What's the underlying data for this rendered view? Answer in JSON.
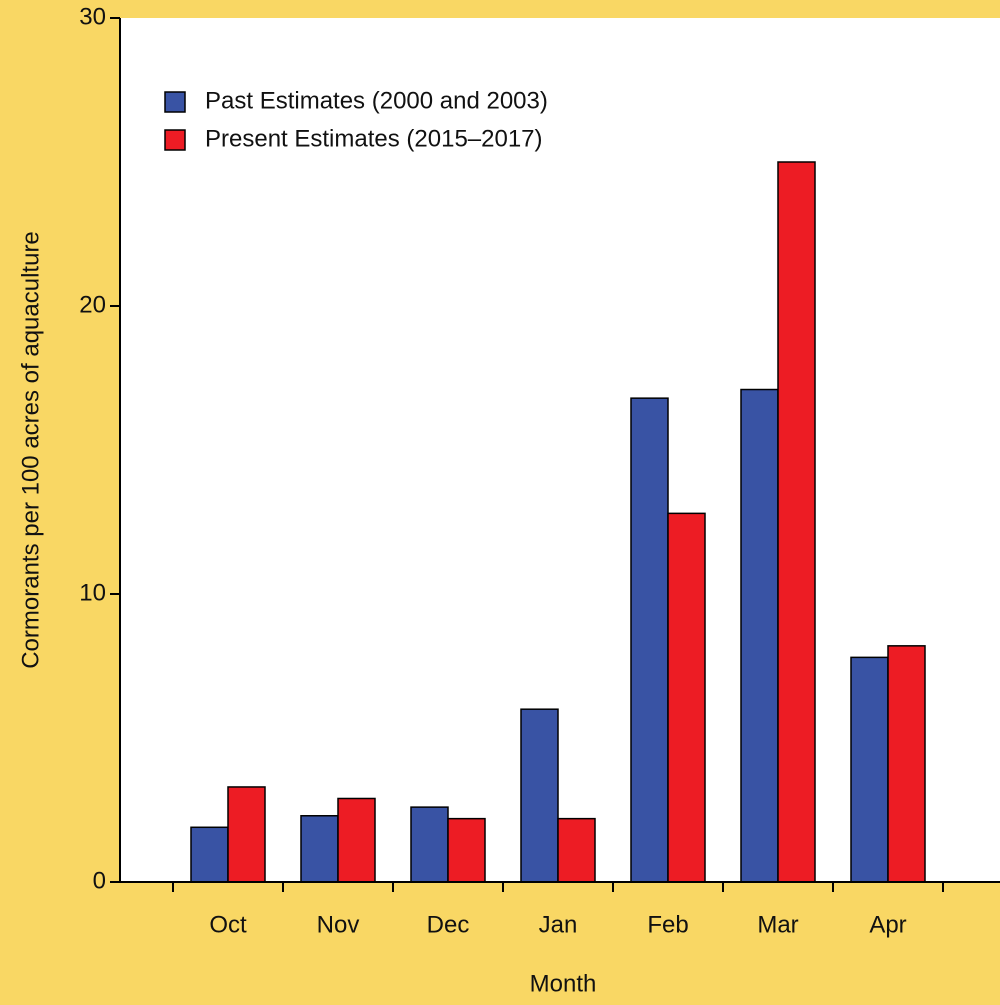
{
  "chart_data": {
    "type": "bar",
    "x_label": "Month",
    "y_label": "Cormorants per 100 acres of aquaculture",
    "categories": [
      "Oct",
      "Nov",
      "Dec",
      "Jan",
      "Feb",
      "Mar",
      "Apr"
    ],
    "series": [
      {
        "name": "Past Estimates (2000 and 2003)",
        "color": "#3953a4",
        "values": [
          1.9,
          2.3,
          2.6,
          6.0,
          16.8,
          17.1,
          7.8
        ]
      },
      {
        "name": "Present Estimates (2015–2017)",
        "color": "#ed1c24",
        "values": [
          3.3,
          2.9,
          2.2,
          2.2,
          12.8,
          25.0,
          8.2
        ]
      }
    ],
    "ylim": [
      0,
      30
    ],
    "yticks": [
      0,
      10,
      20,
      30
    ],
    "legend": "upper left"
  }
}
